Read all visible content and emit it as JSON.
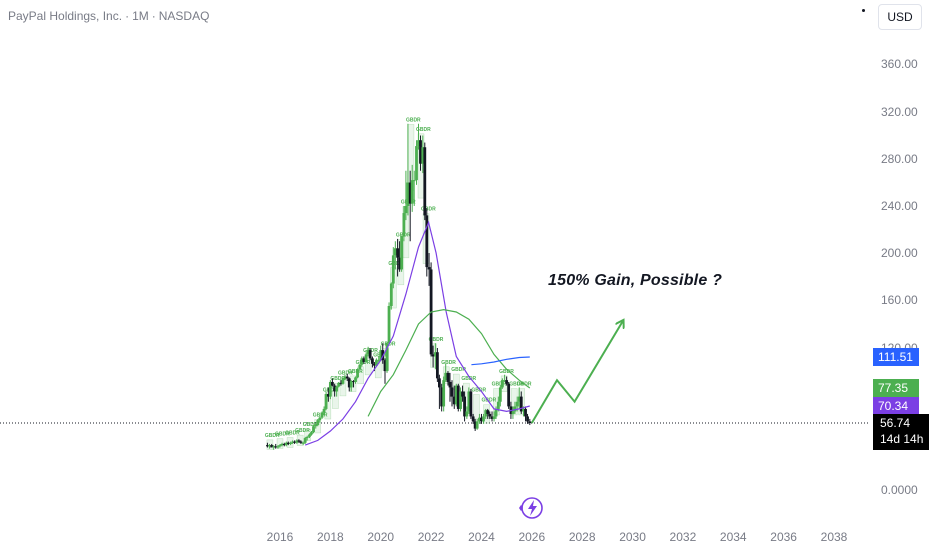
{
  "header": {
    "symbol_name": "PayPal Holdings, Inc.",
    "interval": "1M",
    "exchange": "NASDAQ",
    "separator": "·"
  },
  "currency_button": "USD",
  "annotation_text": "150% Gain, Possible ?",
  "colors": {
    "up": "#4caf50",
    "down": "#131722",
    "ma_purple": "#7b3fe4",
    "ma_green": "#4caf50",
    "ma_blue": "#2962ff",
    "badge_blue": "#2962ff",
    "badge_green": "#4caf50",
    "badge_purple": "#7b3fe4",
    "badge_black": "#000000",
    "arrow": "#4caf50"
  },
  "chart_data": {
    "type": "candlestick",
    "title": "PayPal Holdings, Inc. · 1M · NASDAQ",
    "currency": "USD",
    "x_axis": {
      "ticks": [
        "2016",
        "2018",
        "2020",
        "2022",
        "2024",
        "2026",
        "2028",
        "2030",
        "2032",
        "2034",
        "2036",
        "2038"
      ],
      "range": [
        2015.5,
        2038.7
      ]
    },
    "y_axis": {
      "ticks": [
        0.0,
        120.0,
        160.0,
        200.0,
        240.0,
        280.0,
        320.0,
        360.0
      ],
      "tick_labels": [
        "0.0000",
        "120.00",
        "160.00",
        "200.00",
        "240.00",
        "280.00",
        "320.00",
        "360.00"
      ],
      "range": [
        0,
        380
      ],
      "scale": "log",
      "position": "right"
    },
    "last_price": 56.74,
    "countdown": "14d 14h",
    "price_badges": [
      {
        "value": 111.51,
        "label": "111.51",
        "color": "#2962ff"
      },
      {
        "value": 77.35,
        "label": "77.35",
        "color": "#4caf50"
      },
      {
        "value": 70.34,
        "label": "70.34",
        "color": "#7b3fe4"
      }
    ],
    "candles": [
      [
        2015.5,
        38,
        40,
        36,
        37
      ],
      [
        2015.58,
        37,
        39,
        35,
        38
      ],
      [
        2015.67,
        38,
        39,
        36,
        36
      ],
      [
        2015.75,
        36,
        38,
        34,
        37
      ],
      [
        2015.83,
        37,
        39,
        35,
        36
      ],
      [
        2015.92,
        36,
        38,
        35,
        37
      ],
      [
        2016.0,
        37,
        39,
        36,
        38
      ],
      [
        2016.08,
        38,
        40,
        37,
        39
      ],
      [
        2016.17,
        39,
        40,
        37,
        38
      ],
      [
        2016.25,
        38,
        41,
        37,
        40
      ],
      [
        2016.33,
        40,
        41,
        38,
        39
      ],
      [
        2016.42,
        39,
        41,
        38,
        40
      ],
      [
        2016.5,
        40,
        42,
        39,
        41
      ],
      [
        2016.58,
        41,
        42,
        39,
        40
      ],
      [
        2016.67,
        40,
        43,
        39,
        42
      ],
      [
        2016.75,
        42,
        43,
        40,
        41
      ],
      [
        2016.83,
        41,
        42,
        39,
        40
      ],
      [
        2016.92,
        40,
        41,
        38,
        40
      ],
      [
        2017.0,
        40,
        45,
        39,
        44
      ],
      [
        2017.08,
        44,
        46,
        42,
        45
      ],
      [
        2017.17,
        45,
        48,
        44,
        47
      ],
      [
        2017.25,
        47,
        50,
        46,
        49
      ],
      [
        2017.33,
        49,
        55,
        48,
        54
      ],
      [
        2017.42,
        54,
        56,
        52,
        55
      ],
      [
        2017.5,
        55,
        60,
        54,
        59
      ],
      [
        2017.58,
        59,
        62,
        57,
        61
      ],
      [
        2017.67,
        61,
        66,
        60,
        65
      ],
      [
        2017.75,
        65,
        70,
        63,
        68
      ],
      [
        2017.83,
        68,
        76,
        67,
        75
      ],
      [
        2017.92,
        75,
        78,
        72,
        74
      ],
      [
        2018.0,
        74,
        86,
        73,
        84
      ],
      [
        2018.08,
        84,
        88,
        79,
        80
      ],
      [
        2018.17,
        80,
        82,
        74,
        76
      ],
      [
        2018.25,
        76,
        80,
        74,
        79
      ],
      [
        2018.33,
        79,
        84,
        78,
        83
      ],
      [
        2018.42,
        83,
        86,
        80,
        82
      ],
      [
        2018.5,
        82,
        88,
        81,
        87
      ],
      [
        2018.58,
        87,
        92,
        86,
        90
      ],
      [
        2018.67,
        90,
        93,
        85,
        88
      ],
      [
        2018.75,
        88,
        89,
        76,
        78
      ],
      [
        2018.83,
        78,
        86,
        76,
        85
      ],
      [
        2018.92,
        85,
        86,
        78,
        84
      ],
      [
        2019.0,
        84,
        90,
        82,
        89
      ],
      [
        2019.08,
        89,
        99,
        88,
        98
      ],
      [
        2019.17,
        98,
        104,
        96,
        103
      ],
      [
        2019.25,
        103,
        112,
        101,
        110
      ],
      [
        2019.33,
        110,
        112,
        104,
        106
      ],
      [
        2019.42,
        106,
        116,
        105,
        114
      ],
      [
        2019.5,
        114,
        121,
        112,
        118
      ],
      [
        2019.58,
        118,
        120,
        108,
        110
      ],
      [
        2019.67,
        110,
        112,
        100,
        104
      ],
      [
        2019.75,
        104,
        106,
        96,
        102
      ],
      [
        2019.83,
        102,
        110,
        101,
        108
      ],
      [
        2019.92,
        108,
        112,
        104,
        108
      ],
      [
        2020.0,
        108,
        122,
        107,
        118
      ],
      [
        2020.08,
        118,
        124,
        104,
        108
      ],
      [
        2020.17,
        108,
        110,
        82,
        96
      ],
      [
        2020.25,
        96,
        125,
        94,
        124
      ],
      [
        2020.33,
        124,
        158,
        122,
        155
      ],
      [
        2020.42,
        155,
        175,
        152,
        174
      ],
      [
        2020.5,
        174,
        205,
        170,
        198
      ],
      [
        2020.58,
        198,
        210,
        186,
        204
      ],
      [
        2020.67,
        204,
        212,
        180,
        196
      ],
      [
        2020.75,
        196,
        210,
        184,
        186
      ],
      [
        2020.83,
        186,
        215,
        184,
        214
      ],
      [
        2020.92,
        214,
        240,
        210,
        234
      ],
      [
        2021.0,
        234,
        270,
        228,
        240
      ],
      [
        2021.08,
        240,
        310,
        232,
        260
      ],
      [
        2021.17,
        260,
        270,
        210,
        242
      ],
      [
        2021.25,
        242,
        275,
        235,
        262
      ],
      [
        2021.33,
        262,
        270,
        240,
        262
      ],
      [
        2021.42,
        262,
        296,
        258,
        291
      ],
      [
        2021.5,
        291,
        310,
        288,
        296
      ],
      [
        2021.58,
        296,
        300,
        270,
        276
      ],
      [
        2021.67,
        276,
        300,
        268,
        290
      ],
      [
        2021.75,
        290,
        294,
        228,
        232
      ],
      [
        2021.83,
        232,
        238,
        180,
        188
      ],
      [
        2021.92,
        188,
        200,
        172,
        186
      ],
      [
        2022.0,
        186,
        192,
        112,
        114
      ],
      [
        2022.08,
        114,
        122,
        100,
        112
      ],
      [
        2022.17,
        112,
        124,
        98,
        116
      ],
      [
        2022.25,
        116,
        120,
        84,
        88
      ],
      [
        2022.33,
        88,
        92,
        68,
        78
      ],
      [
        2022.42,
        78,
        82,
        66,
        70
      ],
      [
        2022.5,
        70,
        90,
        66,
        86
      ],
      [
        2022.58,
        86,
        104,
        84,
        94
      ],
      [
        2022.67,
        94,
        96,
        80,
        84
      ],
      [
        2022.75,
        84,
        94,
        72,
        78
      ],
      [
        2022.83,
        78,
        86,
        70,
        74
      ],
      [
        2022.92,
        74,
        80,
        68,
        71
      ],
      [
        2023.0,
        71,
        82,
        70,
        80
      ],
      [
        2023.08,
        80,
        82,
        66,
        68
      ],
      [
        2023.17,
        68,
        78,
        66,
        76
      ],
      [
        2023.25,
        76,
        80,
        72,
        74
      ],
      [
        2023.33,
        74,
        76,
        58,
        62
      ],
      [
        2023.42,
        62,
        70,
        60,
        66
      ],
      [
        2023.5,
        66,
        78,
        64,
        76
      ],
      [
        2023.58,
        76,
        77,
        60,
        62
      ],
      [
        2023.67,
        62,
        64,
        56,
        58
      ],
      [
        2023.75,
        58,
        60,
        50,
        52
      ],
      [
        2023.83,
        52,
        60,
        51,
        58
      ],
      [
        2023.92,
        58,
        64,
        56,
        61
      ],
      [
        2024.0,
        61,
        64,
        56,
        58
      ],
      [
        2024.08,
        58,
        64,
        56,
        62
      ],
      [
        2024.17,
        62,
        68,
        60,
        67
      ],
      [
        2024.25,
        67,
        68,
        60,
        64
      ],
      [
        2024.33,
        64,
        66,
        60,
        62
      ],
      [
        2024.42,
        62,
        66,
        58,
        60
      ],
      [
        2024.5,
        60,
        66,
        58,
        62
      ],
      [
        2024.58,
        62,
        70,
        60,
        68
      ],
      [
        2024.67,
        68,
        74,
        66,
        72
      ],
      [
        2024.75,
        72,
        80,
        70,
        78
      ],
      [
        2024.83,
        78,
        88,
        77,
        86
      ],
      [
        2024.92,
        86,
        92,
        84,
        86
      ],
      [
        2025.0,
        86,
        90,
        80,
        82
      ],
      [
        2025.08,
        82,
        84,
        68,
        70
      ],
      [
        2025.17,
        70,
        72,
        60,
        64
      ],
      [
        2025.25,
        64,
        70,
        60,
        66
      ],
      [
        2025.33,
        66,
        72,
        64,
        70
      ],
      [
        2025.42,
        70,
        74,
        66,
        72
      ],
      [
        2025.5,
        72,
        78,
        68,
        74
      ],
      [
        2025.58,
        74,
        76,
        64,
        66
      ],
      [
        2025.67,
        66,
        70,
        62,
        68
      ],
      [
        2025.75,
        68,
        70,
        58,
        62
      ],
      [
        2025.83,
        62,
        64,
        56,
        58
      ],
      [
        2025.92,
        58,
        60,
        55,
        56.74
      ]
    ],
    "moving_averages": [
      {
        "color": "#7b3fe4",
        "points": [
          [
            2017.0,
            38
          ],
          [
            2017.5,
            42
          ],
          [
            2018.0,
            50
          ],
          [
            2018.5,
            60
          ],
          [
            2019.0,
            72
          ],
          [
            2019.5,
            88
          ],
          [
            2020.0,
            108
          ],
          [
            2020.5,
            130
          ],
          [
            2021.0,
            165
          ],
          [
            2021.5,
            205
          ],
          [
            2021.9,
            226
          ],
          [
            2022.2,
            200
          ],
          [
            2022.6,
            150
          ],
          [
            2023.0,
            112
          ],
          [
            2023.5,
            90
          ],
          [
            2024.0,
            76
          ],
          [
            2024.5,
            68
          ],
          [
            2025.0,
            66
          ],
          [
            2025.5,
            68
          ],
          [
            2025.92,
            70.34
          ]
        ]
      },
      {
        "color": "#4caf50",
        "points": [
          [
            2019.5,
            62
          ],
          [
            2020.0,
            76
          ],
          [
            2020.5,
            92
          ],
          [
            2021.0,
            118
          ],
          [
            2021.5,
            140
          ],
          [
            2022.0,
            150
          ],
          [
            2022.5,
            152
          ],
          [
            2023.0,
            150
          ],
          [
            2023.5,
            144
          ],
          [
            2024.0,
            132
          ],
          [
            2024.5,
            114
          ],
          [
            2025.0,
            98
          ],
          [
            2025.5,
            86
          ],
          [
            2025.92,
            77.35
          ]
        ]
      },
      {
        "color": "#2962ff",
        "points": [
          [
            2023.6,
            103
          ],
          [
            2024.0,
            104
          ],
          [
            2024.5,
            106
          ],
          [
            2025.0,
            109
          ],
          [
            2025.5,
            111
          ],
          [
            2025.92,
            111.51
          ]
        ]
      }
    ],
    "projection": {
      "color": "#4caf50",
      "points": [
        [
          2026.0,
          56.74
        ],
        [
          2027.0,
          86
        ],
        [
          2027.7,
          72
        ],
        [
          2029.6,
          142
        ]
      ]
    },
    "group_labels": {
      "text": "GBDR",
      "points": [
        [
          2015.6,
          45
        ],
        [
          2016.0,
          46
        ],
        [
          2016.4,
          47
        ],
        [
          2016.8,
          49
        ],
        [
          2017.1,
          54
        ],
        [
          2017.5,
          62
        ],
        [
          2017.9,
          76
        ],
        [
          2018.2,
          86
        ],
        [
          2018.5,
          92
        ],
        [
          2018.9,
          94
        ],
        [
          2019.2,
          104
        ],
        [
          2019.5,
          116
        ],
        [
          2019.9,
          112
        ],
        [
          2020.2,
          122
        ],
        [
          2020.5,
          190
        ],
        [
          2020.8,
          214
        ],
        [
          2021.0,
          242
        ],
        [
          2021.2,
          312
        ],
        [
          2021.6,
          304
        ],
        [
          2021.8,
          236
        ],
        [
          2022.1,
          126
        ],
        [
          2022.6,
          104
        ],
        [
          2023.0,
          96
        ],
        [
          2023.4,
          86
        ],
        [
          2023.8,
          76
        ],
        [
          2024.2,
          72
        ],
        [
          2024.6,
          80
        ],
        [
          2024.9,
          94
        ],
        [
          2025.3,
          80
        ],
        [
          2025.6,
          80
        ]
      ]
    }
  }
}
